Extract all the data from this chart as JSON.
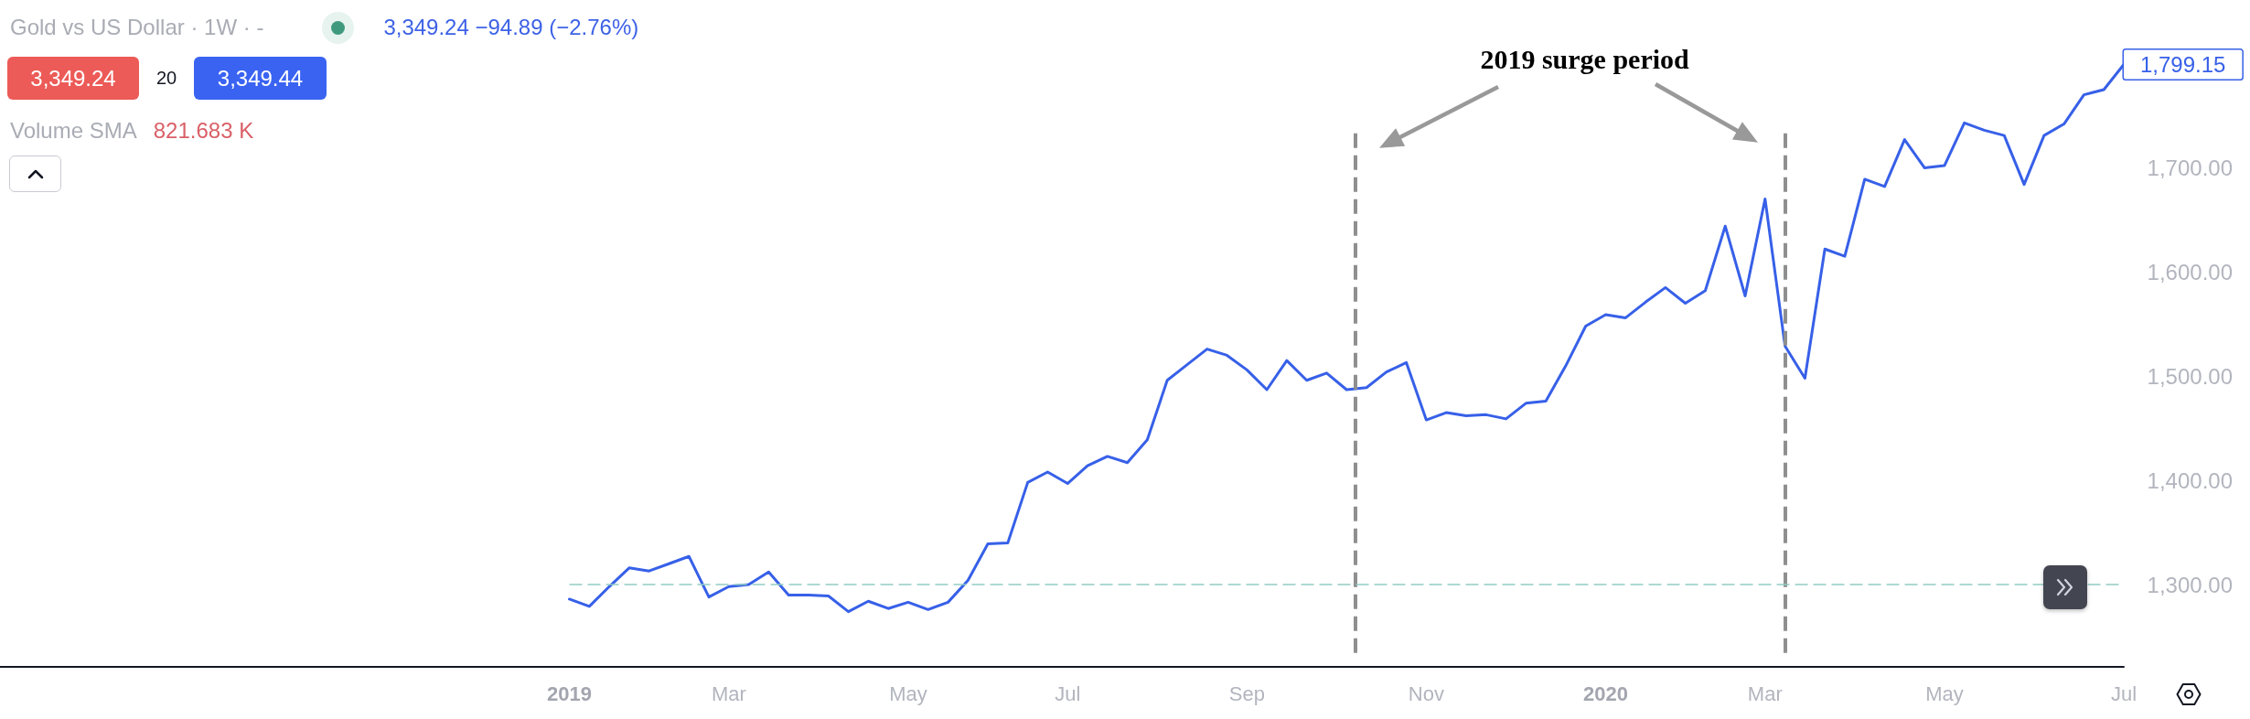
{
  "chart_data": {
    "type": "line",
    "title": "Gold vs US Dollar · 1W · -",
    "subtitle": "3,349.24 −94.89 (−2.76%)",
    "annotations": [
      "3,349.24",
      "20",
      "3,349.44",
      "Volume SMA",
      "821.683 K",
      "2019 surge period"
    ],
    "x": [
      "2019-01-07",
      "2019-01-14",
      "2019-01-21",
      "2019-01-28",
      "2019-02-04",
      "2019-02-11",
      "2019-02-18",
      "2019-02-25",
      "2019-03-04",
      "2019-03-11",
      "2019-03-18",
      "2019-03-25",
      "2019-04-01",
      "2019-04-08",
      "2019-04-15",
      "2019-04-22",
      "2019-04-29",
      "2019-05-06",
      "2019-05-13",
      "2019-05-20",
      "2019-05-27",
      "2019-06-03",
      "2019-06-10",
      "2019-06-17",
      "2019-06-24",
      "2019-07-01",
      "2019-07-08",
      "2019-07-15",
      "2019-07-22",
      "2019-07-29",
      "2019-08-05",
      "2019-08-12",
      "2019-08-19",
      "2019-08-26",
      "2019-09-02",
      "2019-09-09",
      "2019-09-16",
      "2019-09-23",
      "2019-09-30",
      "2019-10-07",
      "2019-10-14",
      "2019-10-21",
      "2019-10-28",
      "2019-11-04",
      "2019-11-11",
      "2019-11-18",
      "2019-11-25",
      "2019-12-02",
      "2019-12-09",
      "2019-12-16",
      "2019-12-23",
      "2019-12-30",
      "2020-01-06",
      "2020-01-13",
      "2020-01-20",
      "2020-01-27",
      "2020-02-03",
      "2020-02-10",
      "2020-02-17",
      "2020-02-24",
      "2020-03-02",
      "2020-03-09",
      "2020-03-16",
      "2020-03-23",
      "2020-03-30",
      "2020-04-06",
      "2020-04-13",
      "2020-04-20",
      "2020-04-27",
      "2020-05-04",
      "2020-05-11",
      "2020-05-18",
      "2020-05-25",
      "2020-06-01",
      "2020-06-08",
      "2020-06-15",
      "2020-06-22",
      "2020-06-29",
      "2020-07-06"
    ],
    "values": [
      1286,
      1279,
      1298,
      1316,
      1313,
      1320,
      1327,
      1288,
      1298,
      1300,
      1312,
      1290,
      1290,
      1289,
      1274,
      1284,
      1277,
      1283,
      1276,
      1283,
      1304,
      1339,
      1340,
      1398,
      1408,
      1397,
      1414,
      1423,
      1417,
      1439,
      1496,
      1511,
      1526,
      1520,
      1506,
      1487,
      1515,
      1496,
      1503,
      1487,
      1489,
      1504,
      1513,
      1458,
      1465,
      1462,
      1463,
      1459,
      1474,
      1476,
      1510,
      1548,
      1559,
      1556,
      1571,
      1585,
      1570,
      1582,
      1644,
      1577,
      1670,
      1529,
      1498,
      1622,
      1615,
      1689,
      1682,
      1727,
      1700,
      1702,
      1743,
      1736,
      1731,
      1684,
      1731,
      1742,
      1770,
      1775,
      1799.15
    ],
    "value_labels": [
      null,
      null,
      null,
      null,
      null,
      null,
      null,
      null,
      null,
      null,
      null,
      null,
      null,
      null,
      null,
      null,
      null,
      null,
      null,
      null,
      null,
      null,
      null,
      null,
      null,
      null,
      null,
      null,
      null,
      null,
      null,
      null,
      null,
      null,
      null,
      null,
      null,
      null,
      null,
      null,
      null,
      null,
      null,
      null,
      null,
      null,
      null,
      null,
      null,
      null,
      null,
      null,
      null,
      null,
      null,
      null,
      null,
      null,
      null,
      null,
      null,
      null,
      null,
      null,
      null,
      null,
      null,
      null,
      null,
      null,
      null,
      null,
      null,
      null,
      null,
      null,
      null,
      null,
      "1,799.15"
    ],
    "color": "#3760e8",
    "xlim": [
      "2018-06-21",
      "2020-07-06"
    ],
    "xticks": [
      {
        "value": "2019-01-07",
        "label": "2019"
      },
      {
        "value": "2019-03-04",
        "label": "Mar"
      },
      {
        "value": "2019-05-06",
        "label": "May"
      },
      {
        "value": "2019-07-01",
        "label": "Jul"
      },
      {
        "value": "2019-09-02",
        "label": "Sep"
      },
      {
        "value": "2019-11-04",
        "label": "Nov"
      },
      {
        "value": "2020-01-06",
        "label": "2020"
      },
      {
        "value": "2020-03-02",
        "label": "Mar"
      },
      {
        "value": "2020-05-04",
        "label": "May"
      },
      {
        "value": "2020-07-06",
        "label": "Jul"
      }
    ],
    "ylim": [
      1221,
      1861
    ],
    "yticks": [
      {
        "value": 1300,
        "label": "1,300.00"
      },
      {
        "value": 1400,
        "label": "1,400.00"
      },
      {
        "value": 1500,
        "label": "1,500.00"
      },
      {
        "value": 1600,
        "label": "1,600.00"
      },
      {
        "value": 1700,
        "label": "1,700.00"
      }
    ],
    "ref_lines": [
      {
        "axis": "x",
        "value": "2019-10-10",
        "color": "#8f8f8f",
        "line_style": "dashed"
      },
      {
        "axis": "x",
        "value": "2020-03-09",
        "color": "#8f8f8f",
        "line_style": "dashed"
      },
      {
        "axis": "y",
        "value": 1300,
        "color": "#92cdc3",
        "line_style": "dashed"
      }
    ]
  }
}
